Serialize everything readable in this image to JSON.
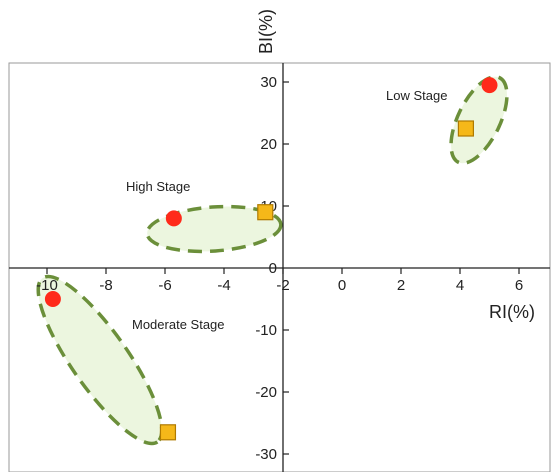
{
  "chart_data": {
    "type": "scatter",
    "xlabel": "RI(%)",
    "ylabel": "BI(%)",
    "xlim": [
      -10.8,
      6.9
    ],
    "ylim": [
      -31,
      33
    ],
    "x_ticks": [
      -10,
      -8,
      -6,
      -4,
      -2,
      0,
      2,
      4,
      6
    ],
    "x_tick_labels": [
      "-10",
      "-8",
      "-6",
      "-4",
      "-2",
      "0",
      "2",
      "4",
      "6"
    ],
    "y_ticks": [
      -30,
      -20,
      -10,
      10,
      20,
      30
    ],
    "y_tick_labels": [
      "-30",
      "-20",
      "-10",
      "10",
      "20",
      "30"
    ],
    "origin_label": "0",
    "grid": false,
    "series": [
      {
        "marker": "circle",
        "color": "#ff2a1a",
        "x": [
          5.0,
          -5.7,
          -9.8
        ],
        "y": [
          29.5,
          8.0,
          -5.0
        ]
      },
      {
        "marker": "square",
        "color": "#f5b819",
        "x": [
          4.2,
          -2.6,
          -5.9
        ],
        "y": [
          22.5,
          9.0,
          -26.5
        ]
      }
    ],
    "groups": [
      {
        "label": "Low Stage",
        "fill": "#ecf6df",
        "stroke": "#6b8f3a"
      },
      {
        "label": "High Stage",
        "fill": "#ecf6df",
        "stroke": "#6b8f3a"
      },
      {
        "label": "Moderate Stage",
        "fill": "#ecf6df",
        "stroke": "#6b8f3a"
      }
    ]
  }
}
